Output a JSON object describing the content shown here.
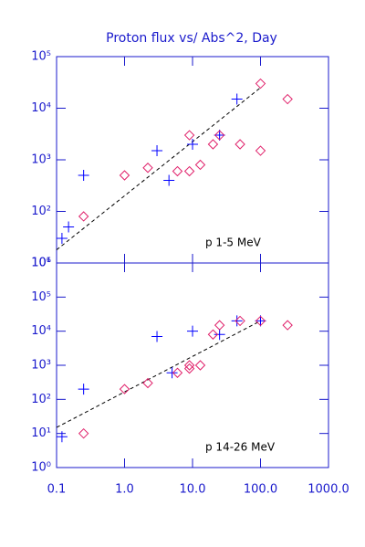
{
  "chart_data": [
    {
      "type": "scatter",
      "title": "Proton flux vs/ Abs^2, Day",
      "annotation": "p 1-5 MeV",
      "xlog": true,
      "ylog": true,
      "xlim": [
        0.1,
        1000
      ],
      "xticks": [
        0.1,
        1,
        10,
        100,
        1000
      ],
      "ylim": [
        10,
        100000
      ],
      "yticks": [
        {
          "value": 10,
          "label": "10¹"
        },
        {
          "value": 100,
          "label": "10²"
        },
        {
          "value": 1000,
          "label": "10³"
        },
        {
          "value": 10000,
          "label": "10⁴"
        },
        {
          "value": 100000,
          "label": "10⁵"
        }
      ],
      "series": [
        {
          "marker": "plus",
          "color": "#0000ff",
          "x": [
            0.12,
            0.15,
            0.25,
            3,
            4.5,
            10,
            25,
            45
          ],
          "values": [
            30,
            50,
            500,
            1500,
            400,
            2000,
            3000,
            15000
          ]
        },
        {
          "marker": "diamond",
          "color": "#e0206a",
          "x": [
            0.25,
            1,
            2.2,
            6,
            9,
            9,
            13,
            20,
            25,
            50,
            100,
            100,
            250
          ],
          "values": [
            80,
            500,
            700,
            600,
            600,
            3000,
            800,
            2000,
            3000,
            2000,
            1500,
            30000,
            15000
          ]
        }
      ],
      "fit_line": {
        "style": "dashed",
        "color": "#000000",
        "x": [
          0.1,
          100
        ],
        "values": [
          18,
          25000
        ]
      }
    },
    {
      "type": "scatter",
      "annotation": "p 14-26 MeV",
      "xlog": true,
      "ylog": true,
      "xlim": [
        0.1,
        1000
      ],
      "xticks": [
        0.1,
        {
          "value": 1,
          "label": "1.0"
        },
        {
          "value": 10,
          "label": "10.0"
        },
        {
          "value": 100,
          "label": "100.0"
        },
        {
          "value": 1000,
          "label": "1000.0"
        }
      ],
      "ylim": [
        1,
        1000000
      ],
      "yticks": [
        {
          "value": 1,
          "label": "10⁰"
        },
        {
          "value": 10,
          "label": "10¹"
        },
        {
          "value": 100,
          "label": "10²"
        },
        {
          "value": 1000,
          "label": "10³"
        },
        {
          "value": 10000,
          "label": "10⁴"
        },
        {
          "value": 100000,
          "label": "10⁵"
        },
        {
          "value": 1000000,
          "label": "10⁶"
        }
      ],
      "series": [
        {
          "marker": "plus",
          "color": "#0000ff",
          "x": [
            0.12,
            0.25,
            3,
            5,
            10,
            25,
            45,
            100
          ],
          "values": [
            8,
            200,
            7000,
            600,
            10000,
            8000,
            20000,
            20000
          ]
        },
        {
          "marker": "diamond",
          "color": "#e0206a",
          "x": [
            0.25,
            1,
            2.2,
            6,
            9,
            9,
            13,
            20,
            25,
            50,
            100,
            250
          ],
          "values": [
            10,
            200,
            300,
            600,
            1000,
            800,
            1000,
            8000,
            15000,
            20000,
            20000,
            15000
          ]
        }
      ],
      "fit_line": {
        "style": "dashed",
        "color": "#000000",
        "x": [
          0.1,
          100
        ],
        "values": [
          15,
          20000
        ]
      }
    }
  ]
}
